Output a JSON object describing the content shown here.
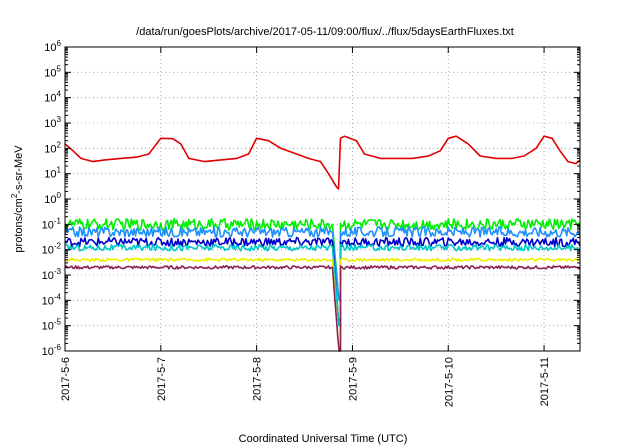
{
  "chart_data": {
    "type": "line",
    "title": "/data/run/goesPlots/archive/2017-05-11/09:00/flux/../flux/5daysEarthFluxes.txt",
    "xlabel": "Coordinated Universal Time (UTC)",
    "ylabel": {
      "base": "protons/cm",
      "sup": "2",
      "rest": "-s-sr-MeV"
    },
    "yscale": "log",
    "ylim": [
      1e-06,
      1000000.0
    ],
    "xlim": [
      "2017-05-06T00:00",
      "2017-05-11T09:00"
    ],
    "x_ticks": [
      "2017-5-6",
      "2017-5-7",
      "2017-5-8",
      "2017-5-9",
      "2017-5-10",
      "2017-5-11"
    ],
    "y_ticks": [
      {
        "base": "10",
        "exp": "-6"
      },
      {
        "base": "10",
        "exp": "-5"
      },
      {
        "base": "10",
        "exp": "-4"
      },
      {
        "base": "10",
        "exp": "-3"
      },
      {
        "base": "10",
        "exp": "-2"
      },
      {
        "base": "10",
        "exp": "-1"
      },
      {
        "base": "10",
        "exp": "0"
      },
      {
        "base": "10",
        "exp": "1"
      },
      {
        "base": "10",
        "exp": "2"
      },
      {
        "base": "10",
        "exp": "3"
      },
      {
        "base": "10",
        "exp": "4"
      },
      {
        "base": "10",
        "exp": "5"
      },
      {
        "base": "10",
        "exp": "6"
      }
    ],
    "grid": true,
    "series": [
      {
        "color": "#e00000",
        "points": [
          [
            "2017-05-06T00:00",
            150
          ],
          [
            "2017-05-06T02:00",
            80
          ],
          [
            "2017-05-06T04:00",
            40
          ],
          [
            "2017-05-06T07:00",
            30
          ],
          [
            "2017-05-06T10:00",
            35
          ],
          [
            "2017-05-06T14:00",
            40
          ],
          [
            "2017-05-06T18:00",
            45
          ],
          [
            "2017-05-06T21:00",
            60
          ],
          [
            "2017-05-07T00:00",
            250
          ],
          [
            "2017-05-07T03:00",
            240
          ],
          [
            "2017-05-07T05:00",
            150
          ],
          [
            "2017-05-07T07:00",
            40
          ],
          [
            "2017-05-07T11:00",
            30
          ],
          [
            "2017-05-07T15:00",
            35
          ],
          [
            "2017-05-07T19:00",
            40
          ],
          [
            "2017-05-07T22:00",
            60
          ],
          [
            "2017-05-08T00:00",
            250
          ],
          [
            "2017-05-08T03:00",
            200
          ],
          [
            "2017-05-08T06:00",
            100
          ],
          [
            "2017-05-08T10:00",
            60
          ],
          [
            "2017-05-08T13:00",
            40
          ],
          [
            "2017-05-08T16:00",
            30
          ],
          [
            "2017-05-08T18:00",
            10
          ],
          [
            "2017-05-08T20:00",
            3
          ],
          [
            "2017-05-08T20:30",
            2.5
          ],
          [
            "2017-05-08T21:00",
            250
          ],
          [
            "2017-05-08T22:00",
            300
          ],
          [
            "2017-05-09T01:00",
            200
          ],
          [
            "2017-05-09T03:00",
            60
          ],
          [
            "2017-05-09T07:00",
            40
          ],
          [
            "2017-05-09T11:00",
            40
          ],
          [
            "2017-05-09T15:00",
            40
          ],
          [
            "2017-05-09T19:00",
            50
          ],
          [
            "2017-05-09T22:00",
            80
          ],
          [
            "2017-05-10T00:00",
            250
          ],
          [
            "2017-05-10T02:00",
            300
          ],
          [
            "2017-05-10T05:00",
            150
          ],
          [
            "2017-05-10T08:00",
            50
          ],
          [
            "2017-05-10T12:00",
            40
          ],
          [
            "2017-05-10T16:00",
            40
          ],
          [
            "2017-05-10T19:00",
            50
          ],
          [
            "2017-05-10T22:00",
            100
          ],
          [
            "2017-05-11T00:00",
            300
          ],
          [
            "2017-05-11T02:00",
            250
          ],
          [
            "2017-05-11T04:00",
            80
          ],
          [
            "2017-05-11T06:00",
            30
          ],
          [
            "2017-05-11T08:00",
            25
          ],
          [
            "2017-05-11T09:00",
            35
          ]
        ]
      },
      {
        "color": "#00ee00",
        "base": 0.1,
        "spread": 0.45,
        "drop_to": 0.0001
      },
      {
        "color": "#1e90ff",
        "base": 0.05,
        "spread": 0.4,
        "drop_to": 0.0001
      },
      {
        "color": "#0000cc",
        "base": 0.02,
        "spread": 0.35,
        "drop_to": 1e-05
      },
      {
        "color": "#00c8c8",
        "base": 0.012,
        "spread": 0.25,
        "drop_to": 1e-05
      },
      {
        "color": "#eeee00",
        "base": 0.004,
        "spread": 0.12,
        "drop_to": 1e-06
      },
      {
        "color": "#8b2252",
        "base": 0.002,
        "spread": 0.12,
        "drop_to": 1e-06
      }
    ],
    "low_energy_gap": [
      "2017-05-08T19:00",
      "2017-05-08T21:00"
    ]
  }
}
